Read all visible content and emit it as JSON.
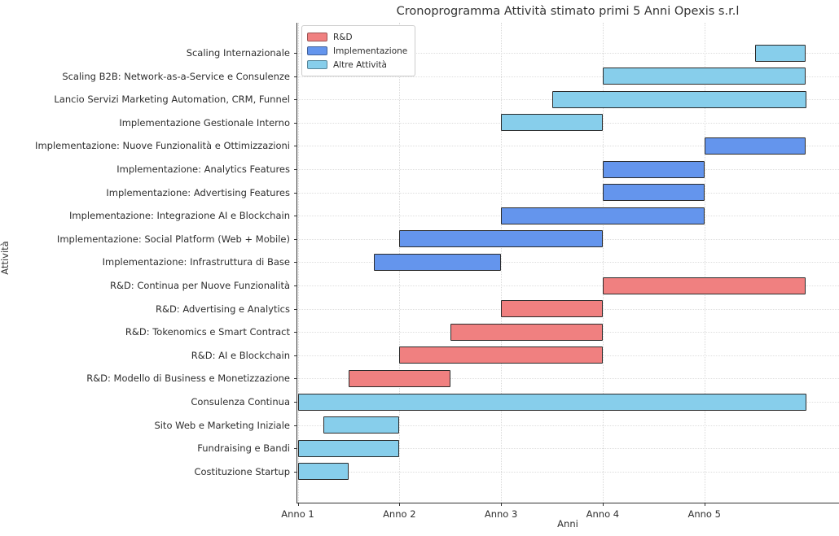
{
  "chart_data": {
    "type": "bar",
    "subtype": "gantt-horizontal",
    "title": "Cronoprogramma Attività stimato primi 5 Anni Opexis s.r.l",
    "xlabel": "Anni",
    "ylabel": "Attività",
    "xlim": [
      1,
      6.33
    ],
    "grid": "dotted, both axes, light gray",
    "x_ticks": [
      {
        "value": 1,
        "label": "Anno 1"
      },
      {
        "value": 2,
        "label": "Anno 2"
      },
      {
        "value": 3,
        "label": "Anno 3"
      },
      {
        "value": 4,
        "label": "Anno 4"
      },
      {
        "value": 5,
        "label": "Anno 5"
      }
    ],
    "legend": {
      "position": "upper-left",
      "items": [
        {
          "name": "R&D",
          "color": "#F08080"
        },
        {
          "name": "Implementazione",
          "color": "#6495ED"
        },
        {
          "name": "Altre Attività",
          "color": "#87CEEB"
        }
      ]
    },
    "category_colors": {
      "R&D": "#F08080",
      "Implementazione": "#6495ED",
      "Altre Attività": "#87CEEB"
    },
    "bar_edge_color": "#2b2b2b",
    "tasks": [
      {
        "label": "Scaling Internazionale",
        "category": "Altre Attività",
        "start": 5.5,
        "end": 6.0
      },
      {
        "label": "Scaling B2B: Network-as-a-Service e Consulenze",
        "category": "Altre Attività",
        "start": 4.0,
        "end": 6.0
      },
      {
        "label": "Lancio Servizi Marketing Automation, CRM, Funnel",
        "category": "Altre Attività",
        "start": 3.5,
        "end": 6.0
      },
      {
        "label": "Implementazione Gestionale Interno",
        "category": "Altre Attività",
        "start": 3.0,
        "end": 4.0
      },
      {
        "label": "Implementazione: Nuove Funzionalità e Ottimizzazioni",
        "category": "Implementazione",
        "start": 5.0,
        "end": 6.0
      },
      {
        "label": "Implementazione: Analytics Features",
        "category": "Implementazione",
        "start": 4.0,
        "end": 5.0
      },
      {
        "label": "Implementazione: Advertising Features",
        "category": "Implementazione",
        "start": 4.0,
        "end": 5.0
      },
      {
        "label": "Implementazione: Integrazione AI e Blockchain",
        "category": "Implementazione",
        "start": 3.0,
        "end": 5.0
      },
      {
        "label": "Implementazione: Social Platform (Web + Mobile)",
        "category": "Implementazione",
        "start": 2.0,
        "end": 4.0
      },
      {
        "label": "Implementazione: Infrastruttura di Base",
        "category": "Implementazione",
        "start": 1.75,
        "end": 3.0
      },
      {
        "label": "R&D: Continua per Nuove Funzionalità",
        "category": "R&D",
        "start": 4.0,
        "end": 6.0
      },
      {
        "label": "R&D: Advertising e Analytics",
        "category": "R&D",
        "start": 3.0,
        "end": 4.0
      },
      {
        "label": "R&D: Tokenomics e Smart Contract",
        "category": "R&D",
        "start": 2.5,
        "end": 4.0
      },
      {
        "label": "R&D: AI e Blockchain",
        "category": "R&D",
        "start": 2.0,
        "end": 4.0
      },
      {
        "label": "R&D: Modello di Business e Monetizzazione",
        "category": "R&D",
        "start": 1.5,
        "end": 2.5
      },
      {
        "label": "Consulenza Continua",
        "category": "Altre Attività",
        "start": 1.0,
        "end": 6.0
      },
      {
        "label": "Sito Web e Marketing Iniziale",
        "category": "Altre Attività",
        "start": 1.25,
        "end": 2.0
      },
      {
        "label": "Fundraising e Bandi",
        "category": "Altre Attività",
        "start": 1.0,
        "end": 2.0
      },
      {
        "label": "Costituzione Startup",
        "category": "Altre Attività",
        "start": 1.0,
        "end": 1.5
      }
    ]
  }
}
